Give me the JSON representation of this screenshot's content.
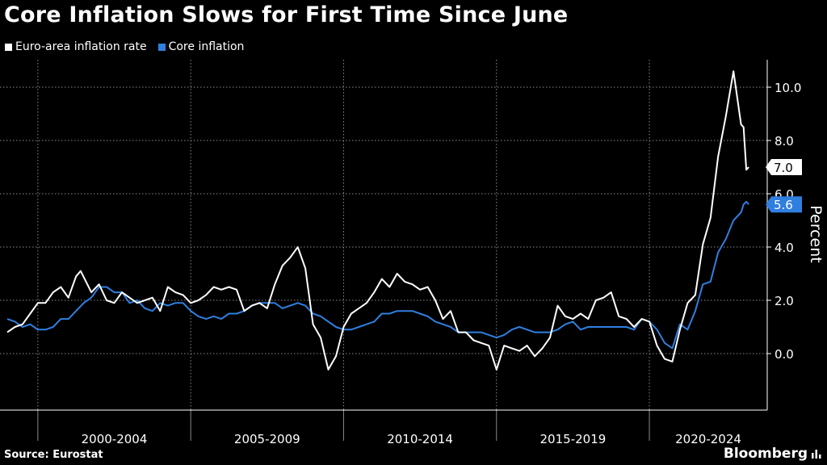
{
  "title": "Core Inflation Slows for First Time Since June",
  "source": "Source: Eurostat",
  "brand": "Bloomberg",
  "colors": {
    "background": "#000000",
    "headline": "#ffffff",
    "core": "#2f7fe0",
    "grid": "#8a8a8a"
  },
  "chart_data": {
    "type": "line",
    "legend_position": "top-left",
    "ylabel": "Percent",
    "ylim": [
      -2.1,
      11.0
    ],
    "yticks": [
      0.0,
      2.0,
      4.0,
      6.0,
      8.0,
      10.0
    ],
    "ytick_labels": [
      "0.0",
      "2.0",
      "4.0",
      "6.0",
      "8.0",
      "10.0"
    ],
    "x_period_labels": [
      "2000-2004",
      "2005-2009",
      "2010-2014",
      "2015-2019",
      "2020-2024"
    ],
    "x_range": [
      1999.0,
      2023.3
    ],
    "grid": "dotted",
    "series": [
      {
        "name": "Euro-area inflation rate",
        "color": "#ffffff",
        "end_label": "7.0",
        "points": [
          [
            1999.0,
            0.8
          ],
          [
            1999.25,
            1.0
          ],
          [
            1999.5,
            1.1
          ],
          [
            1999.75,
            1.5
          ],
          [
            2000.0,
            1.9
          ],
          [
            2000.25,
            1.9
          ],
          [
            2000.5,
            2.3
          ],
          [
            2000.75,
            2.5
          ],
          [
            2001.0,
            2.1
          ],
          [
            2001.25,
            2.9
          ],
          [
            2001.4,
            3.1
          ],
          [
            2001.75,
            2.3
          ],
          [
            2002.0,
            2.6
          ],
          [
            2002.25,
            2.0
          ],
          [
            2002.5,
            1.9
          ],
          [
            2002.75,
            2.3
          ],
          [
            2003.0,
            2.1
          ],
          [
            2003.25,
            1.9
          ],
          [
            2003.5,
            2.0
          ],
          [
            2003.75,
            2.1
          ],
          [
            2004.0,
            1.6
          ],
          [
            2004.25,
            2.5
          ],
          [
            2004.5,
            2.3
          ],
          [
            2004.75,
            2.2
          ],
          [
            2005.0,
            1.9
          ],
          [
            2005.25,
            2.0
          ],
          [
            2005.5,
            2.2
          ],
          [
            2005.75,
            2.5
          ],
          [
            2006.0,
            2.4
          ],
          [
            2006.25,
            2.5
          ],
          [
            2006.5,
            2.4
          ],
          [
            2006.75,
            1.6
          ],
          [
            2007.0,
            1.8
          ],
          [
            2007.25,
            1.9
          ],
          [
            2007.5,
            1.7
          ],
          [
            2007.75,
            2.6
          ],
          [
            2008.0,
            3.3
          ],
          [
            2008.25,
            3.6
          ],
          [
            2008.5,
            4.0
          ],
          [
            2008.75,
            3.2
          ],
          [
            2009.0,
            1.1
          ],
          [
            2009.25,
            0.6
          ],
          [
            2009.5,
            -0.6
          ],
          [
            2009.75,
            -0.1
          ],
          [
            2010.0,
            1.0
          ],
          [
            2010.25,
            1.5
          ],
          [
            2010.5,
            1.7
          ],
          [
            2010.75,
            1.9
          ],
          [
            2011.0,
            2.3
          ],
          [
            2011.25,
            2.8
          ],
          [
            2011.5,
            2.5
          ],
          [
            2011.75,
            3.0
          ],
          [
            2012.0,
            2.7
          ],
          [
            2012.25,
            2.6
          ],
          [
            2012.5,
            2.4
          ],
          [
            2012.75,
            2.5
          ],
          [
            2013.0,
            2.0
          ],
          [
            2013.25,
            1.3
          ],
          [
            2013.5,
            1.6
          ],
          [
            2013.75,
            0.8
          ],
          [
            2014.0,
            0.8
          ],
          [
            2014.25,
            0.5
          ],
          [
            2014.5,
            0.4
          ],
          [
            2014.75,
            0.3
          ],
          [
            2015.0,
            -0.6
          ],
          [
            2015.25,
            0.3
          ],
          [
            2015.5,
            0.2
          ],
          [
            2015.75,
            0.1
          ],
          [
            2016.0,
            0.3
          ],
          [
            2016.25,
            -0.1
          ],
          [
            2016.5,
            0.2
          ],
          [
            2016.75,
            0.6
          ],
          [
            2017.0,
            1.8
          ],
          [
            2017.25,
            1.4
          ],
          [
            2017.5,
            1.3
          ],
          [
            2017.75,
            1.5
          ],
          [
            2018.0,
            1.3
          ],
          [
            2018.25,
            2.0
          ],
          [
            2018.5,
            2.1
          ],
          [
            2018.75,
            2.3
          ],
          [
            2019.0,
            1.4
          ],
          [
            2019.25,
            1.3
          ],
          [
            2019.5,
            1.0
          ],
          [
            2019.75,
            1.3
          ],
          [
            2020.0,
            1.2
          ],
          [
            2020.25,
            0.3
          ],
          [
            2020.5,
            -0.2
          ],
          [
            2020.75,
            -0.3
          ],
          [
            2021.0,
            0.9
          ],
          [
            2021.25,
            1.9
          ],
          [
            2021.5,
            2.2
          ],
          [
            2021.75,
            4.1
          ],
          [
            2022.0,
            5.1
          ],
          [
            2022.25,
            7.4
          ],
          [
            2022.5,
            8.9
          ],
          [
            2022.75,
            10.6
          ],
          [
            2023.0,
            8.6
          ],
          [
            2023.08,
            8.5
          ],
          [
            2023.17,
            6.9
          ],
          [
            2023.25,
            7.0
          ]
        ]
      },
      {
        "name": "Core inflation",
        "color": "#2f7fe0",
        "end_label": "5.6",
        "points": [
          [
            1999.0,
            1.3
          ],
          [
            1999.25,
            1.2
          ],
          [
            1999.5,
            1.0
          ],
          [
            1999.75,
            1.1
          ],
          [
            2000.0,
            0.9
          ],
          [
            2000.25,
            0.9
          ],
          [
            2000.5,
            1.0
          ],
          [
            2000.75,
            1.3
          ],
          [
            2001.0,
            1.3
          ],
          [
            2001.25,
            1.6
          ],
          [
            2001.5,
            1.9
          ],
          [
            2001.75,
            2.1
          ],
          [
            2002.0,
            2.5
          ],
          [
            2002.25,
            2.5
          ],
          [
            2002.5,
            2.3
          ],
          [
            2002.75,
            2.3
          ],
          [
            2003.0,
            1.9
          ],
          [
            2003.25,
            2.0
          ],
          [
            2003.5,
            1.7
          ],
          [
            2003.75,
            1.6
          ],
          [
            2004.0,
            1.9
          ],
          [
            2004.25,
            1.8
          ],
          [
            2004.5,
            1.9
          ],
          [
            2004.75,
            1.9
          ],
          [
            2005.0,
            1.6
          ],
          [
            2005.25,
            1.4
          ],
          [
            2005.5,
            1.3
          ],
          [
            2005.75,
            1.4
          ],
          [
            2006.0,
            1.3
          ],
          [
            2006.25,
            1.5
          ],
          [
            2006.5,
            1.5
          ],
          [
            2006.75,
            1.6
          ],
          [
            2007.0,
            1.8
          ],
          [
            2007.25,
            1.9
          ],
          [
            2007.5,
            1.9
          ],
          [
            2007.75,
            1.9
          ],
          [
            2008.0,
            1.7
          ],
          [
            2008.25,
            1.8
          ],
          [
            2008.5,
            1.9
          ],
          [
            2008.75,
            1.8
          ],
          [
            2009.0,
            1.5
          ],
          [
            2009.25,
            1.4
          ],
          [
            2009.5,
            1.2
          ],
          [
            2009.75,
            1.0
          ],
          [
            2010.0,
            0.9
          ],
          [
            2010.25,
            0.9
          ],
          [
            2010.5,
            1.0
          ],
          [
            2010.75,
            1.1
          ],
          [
            2011.0,
            1.2
          ],
          [
            2011.25,
            1.5
          ],
          [
            2011.5,
            1.5
          ],
          [
            2011.75,
            1.6
          ],
          [
            2012.0,
            1.6
          ],
          [
            2012.25,
            1.6
          ],
          [
            2012.5,
            1.5
          ],
          [
            2012.75,
            1.4
          ],
          [
            2013.0,
            1.2
          ],
          [
            2013.25,
            1.1
          ],
          [
            2013.5,
            1.0
          ],
          [
            2013.75,
            0.8
          ],
          [
            2014.0,
            0.8
          ],
          [
            2014.25,
            0.8
          ],
          [
            2014.5,
            0.8
          ],
          [
            2014.75,
            0.7
          ],
          [
            2015.0,
            0.6
          ],
          [
            2015.25,
            0.7
          ],
          [
            2015.5,
            0.9
          ],
          [
            2015.75,
            1.0
          ],
          [
            2016.0,
            0.9
          ],
          [
            2016.25,
            0.8
          ],
          [
            2016.5,
            0.8
          ],
          [
            2016.75,
            0.8
          ],
          [
            2017.0,
            0.9
          ],
          [
            2017.25,
            1.1
          ],
          [
            2017.5,
            1.2
          ],
          [
            2017.75,
            0.9
          ],
          [
            2018.0,
            1.0
          ],
          [
            2018.25,
            1.0
          ],
          [
            2018.5,
            1.0
          ],
          [
            2018.75,
            1.0
          ],
          [
            2019.0,
            1.0
          ],
          [
            2019.25,
            1.0
          ],
          [
            2019.5,
            0.9
          ],
          [
            2019.75,
            1.3
          ],
          [
            2020.0,
            1.2
          ],
          [
            2020.25,
            0.9
          ],
          [
            2020.5,
            0.4
          ],
          [
            2020.75,
            0.2
          ],
          [
            2021.0,
            1.1
          ],
          [
            2021.25,
            0.9
          ],
          [
            2021.5,
            1.6
          ],
          [
            2021.75,
            2.6
          ],
          [
            2022.0,
            2.7
          ],
          [
            2022.25,
            3.8
          ],
          [
            2022.5,
            4.3
          ],
          [
            2022.75,
            5.0
          ],
          [
            2023.0,
            5.3
          ],
          [
            2023.08,
            5.6
          ],
          [
            2023.17,
            5.7
          ],
          [
            2023.25,
            5.6
          ]
        ]
      }
    ]
  }
}
